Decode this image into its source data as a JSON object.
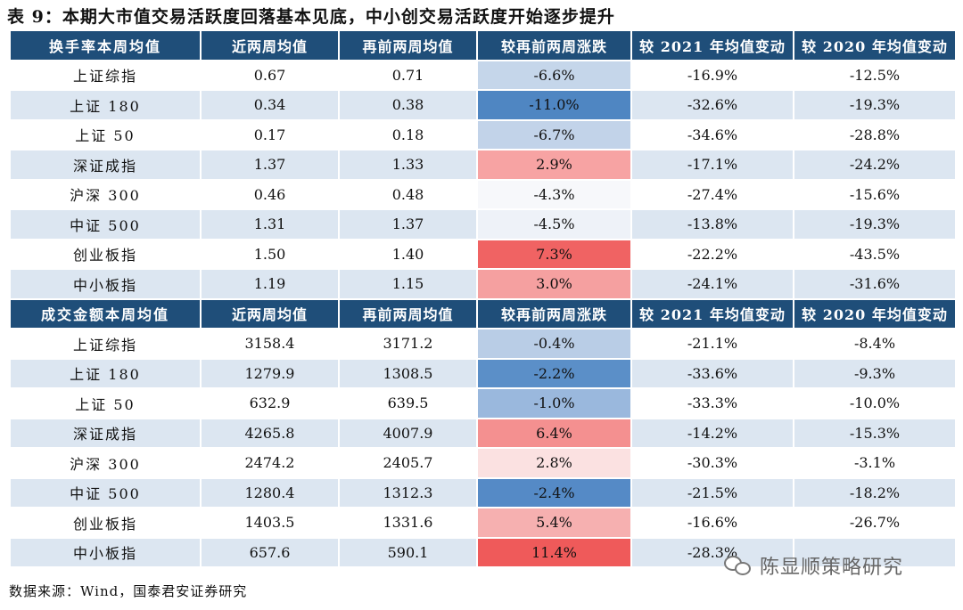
{
  "title": "表 9：本期大市值交易活跃度回落基本见底，中小创交易活跃度开始逐步提升",
  "colors": {
    "header_bg": "#1f4e79",
    "header_text": "#ffffff",
    "row_shade": "#dce6f1"
  },
  "sections": [
    {
      "headers": [
        "换手率本周均值",
        "近两周均值",
        "再前两周均值",
        "较再前两周涨跌",
        "较 2021 年均值变动",
        "较 2020 年均值变动"
      ],
      "rows": [
        {
          "name": "上证综指",
          "recent": "0.67",
          "prev": "0.71",
          "chg": "-6.6%",
          "chg_color": "#c5d6ea",
          "y2021": "-16.9%",
          "y2020": "-12.5%"
        },
        {
          "name": "上证 180",
          "recent": "0.34",
          "prev": "0.38",
          "chg": "-11.0%",
          "chg_color": "#4f86c2",
          "y2021": "-32.6%",
          "y2020": "-19.3%"
        },
        {
          "name": "上证 50",
          "recent": "0.17",
          "prev": "0.18",
          "chg": "-6.7%",
          "chg_color": "#c2d3e9",
          "y2021": "-34.6%",
          "y2020": "-28.8%"
        },
        {
          "name": "深证成指",
          "recent": "1.37",
          "prev": "1.33",
          "chg": "2.9%",
          "chg_color": "#f7a3a3",
          "y2021": "-17.1%",
          "y2020": "-24.2%"
        },
        {
          "name": "沪深 300",
          "recent": "0.46",
          "prev": "0.48",
          "chg": "-4.3%",
          "chg_color": "#f7f8fb",
          "y2021": "-27.4%",
          "y2020": "-15.6%"
        },
        {
          "name": "中证 500",
          "recent": "1.31",
          "prev": "1.37",
          "chg": "-4.5%",
          "chg_color": "#eef2f8",
          "y2021": "-13.8%",
          "y2020": "-19.3%"
        },
        {
          "name": "创业板指",
          "recent": "1.50",
          "prev": "1.40",
          "chg": "7.3%",
          "chg_color": "#f06363",
          "y2021": "-22.2%",
          "y2020": "-43.5%"
        },
        {
          "name": "中小板指",
          "recent": "1.19",
          "prev": "1.15",
          "chg": "3.0%",
          "chg_color": "#f5a0a0",
          "y2021": "-24.1%",
          "y2020": "-31.6%"
        }
      ]
    },
    {
      "headers": [
        "成交金额本周均值",
        "近两周均值",
        "再前两周均值",
        "较再前两周涨跌",
        "较 2021 年均值变动",
        "较 2020 年均值变动"
      ],
      "rows": [
        {
          "name": "上证综指",
          "recent": "3158.4",
          "prev": "3171.2",
          "chg": "-0.4%",
          "chg_color": "#b9cde6",
          "y2021": "-21.1%",
          "y2020": "-8.4%"
        },
        {
          "name": "上证 180",
          "recent": "1279.9",
          "prev": "1308.5",
          "chg": "-2.2%",
          "chg_color": "#5b8fc8",
          "y2021": "-33.6%",
          "y2020": "-9.3%"
        },
        {
          "name": "上证 50",
          "recent": "632.9",
          "prev": "639.5",
          "chg": "-1.0%",
          "chg_color": "#9ab8dd",
          "y2021": "-33.3%",
          "y2020": "-10.0%"
        },
        {
          "name": "深证成指",
          "recent": "4265.8",
          "prev": "4007.9",
          "chg": "6.4%",
          "chg_color": "#f49090",
          "y2021": "-14.2%",
          "y2020": "-15.3%"
        },
        {
          "name": "沪深 300",
          "recent": "2474.2",
          "prev": "2405.7",
          "chg": "2.8%",
          "chg_color": "#fbe1e1",
          "y2021": "-30.3%",
          "y2020": "-3.1%"
        },
        {
          "name": "中证 500",
          "recent": "1280.4",
          "prev": "1312.3",
          "chg": "-2.4%",
          "chg_color": "#558ac6",
          "y2021": "-21.5%",
          "y2020": "-18.2%"
        },
        {
          "name": "创业板指",
          "recent": "1403.5",
          "prev": "1331.6",
          "chg": "5.4%",
          "chg_color": "#f6b0b0",
          "y2021": "-16.6%",
          "y2020": "-26.7%"
        },
        {
          "name": "中小板指",
          "recent": "657.6",
          "prev": "590.1",
          "chg": "11.4%",
          "chg_color": "#ef5a5a",
          "y2021": "-28.3%",
          "y2020": ""
        }
      ]
    }
  ],
  "source": "数据来源：Wind，国泰君安证券研究",
  "watermark": "陈显顺策略研究"
}
